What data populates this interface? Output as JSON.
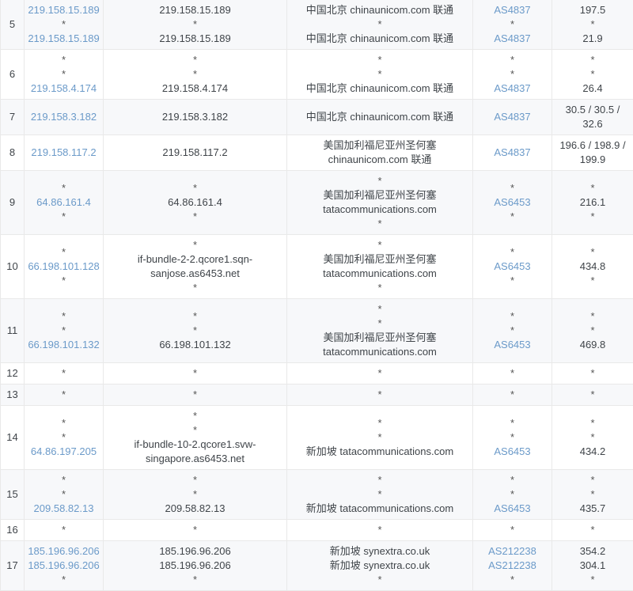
{
  "colors": {
    "link": "#6b9ac9",
    "text": "#3f4449",
    "border": "#e9e9e9",
    "stripe_bg": "#f7f8fa",
    "row_bg": "#ffffff",
    "asterisk": "#555555"
  },
  "table": {
    "rows": [
      {
        "hop": "5",
        "ip": [
          {
            "text": "219.158.15.189",
            "link": true
          },
          {
            "text": "*"
          },
          {
            "text": "219.158.15.189",
            "link": true
          }
        ],
        "host": [
          {
            "text": "219.158.15.189"
          },
          {
            "text": "*"
          },
          {
            "text": "219.158.15.189"
          }
        ],
        "location": [
          {
            "text": "中国北京 chinaunicom.com 联通"
          },
          {
            "text": "*"
          },
          {
            "text": "中国北京 chinaunicom.com 联通"
          }
        ],
        "asn": [
          {
            "text": "AS4837",
            "link": true
          },
          {
            "text": "*"
          },
          {
            "text": "AS4837",
            "link": true
          }
        ],
        "latency": [
          {
            "text": "197.5"
          },
          {
            "text": "*"
          },
          {
            "text": "21.9"
          }
        ]
      },
      {
        "hop": "6",
        "ip": [
          {
            "text": "*"
          },
          {
            "text": "*"
          },
          {
            "text": "219.158.4.174",
            "link": true
          }
        ],
        "host": [
          {
            "text": "*"
          },
          {
            "text": "*"
          },
          {
            "text": "219.158.4.174"
          }
        ],
        "location": [
          {
            "text": "*"
          },
          {
            "text": "*"
          },
          {
            "text": "中国北京 chinaunicom.com 联通"
          }
        ],
        "asn": [
          {
            "text": "*"
          },
          {
            "text": "*"
          },
          {
            "text": "AS4837",
            "link": true
          }
        ],
        "latency": [
          {
            "text": "*"
          },
          {
            "text": "*"
          },
          {
            "text": "26.4"
          }
        ]
      },
      {
        "hop": "7",
        "ip": [
          {
            "text": "219.158.3.182",
            "link": true
          }
        ],
        "host": [
          {
            "text": "219.158.3.182"
          }
        ],
        "location": [
          {
            "text": "中国北京 chinaunicom.com 联通"
          }
        ],
        "asn": [
          {
            "text": "AS4837",
            "link": true
          }
        ],
        "latency": [
          {
            "text": "30.5 / 30.5 / 32.6"
          }
        ]
      },
      {
        "hop": "8",
        "ip": [
          {
            "text": "219.158.117.2",
            "link": true
          }
        ],
        "host": [
          {
            "text": "219.158.117.2"
          }
        ],
        "location": [
          {
            "text": "美国加利福尼亚州圣何塞 chinaunicom.com 联通"
          }
        ],
        "asn": [
          {
            "text": "AS4837",
            "link": true
          }
        ],
        "latency": [
          {
            "text": "196.6 / 198.9 / 199.9"
          }
        ]
      },
      {
        "hop": "9",
        "ip": [
          {
            "text": "*"
          },
          {
            "text": "64.86.161.4",
            "link": true
          },
          {
            "text": "*"
          }
        ],
        "host": [
          {
            "text": "*"
          },
          {
            "text": "64.86.161.4"
          },
          {
            "text": "*"
          }
        ],
        "location": [
          {
            "text": "*"
          },
          {
            "text": "美国加利福尼亚州圣何塞 tatacommunications.com"
          },
          {
            "text": "*"
          }
        ],
        "asn": [
          {
            "text": "*"
          },
          {
            "text": "AS6453",
            "link": true
          },
          {
            "text": "*"
          }
        ],
        "latency": [
          {
            "text": "*"
          },
          {
            "text": "216.1"
          },
          {
            "text": "*"
          }
        ]
      },
      {
        "hop": "10",
        "ip": [
          {
            "text": "*"
          },
          {
            "text": "66.198.101.128",
            "link": true
          },
          {
            "text": "*"
          }
        ],
        "host": [
          {
            "text": "*"
          },
          {
            "text": "if-bundle-2-2.qcore1.sqn-sanjose.as6453.net"
          },
          {
            "text": "*"
          }
        ],
        "location": [
          {
            "text": "*"
          },
          {
            "text": "美国加利福尼亚州圣何塞 tatacommunications.com"
          },
          {
            "text": "*"
          }
        ],
        "asn": [
          {
            "text": "*"
          },
          {
            "text": "AS6453",
            "link": true
          },
          {
            "text": "*"
          }
        ],
        "latency": [
          {
            "text": "*"
          },
          {
            "text": "434.8"
          },
          {
            "text": "*"
          }
        ]
      },
      {
        "hop": "11",
        "ip": [
          {
            "text": "*"
          },
          {
            "text": "*"
          },
          {
            "text": "66.198.101.132",
            "link": true
          }
        ],
        "host": [
          {
            "text": "*"
          },
          {
            "text": "*"
          },
          {
            "text": "66.198.101.132"
          }
        ],
        "location": [
          {
            "text": "*"
          },
          {
            "text": "*"
          },
          {
            "text": "美国加利福尼亚州圣何塞 tatacommunications.com"
          }
        ],
        "asn": [
          {
            "text": "*"
          },
          {
            "text": "*"
          },
          {
            "text": "AS6453",
            "link": true
          }
        ],
        "latency": [
          {
            "text": "*"
          },
          {
            "text": "*"
          },
          {
            "text": "469.8"
          }
        ]
      },
      {
        "hop": "12",
        "ip": [
          {
            "text": "*"
          }
        ],
        "host": [
          {
            "text": "*"
          }
        ],
        "location": [
          {
            "text": "*"
          }
        ],
        "asn": [
          {
            "text": "*"
          }
        ],
        "latency": [
          {
            "text": "*"
          }
        ]
      },
      {
        "hop": "13",
        "ip": [
          {
            "text": "*"
          }
        ],
        "host": [
          {
            "text": "*"
          }
        ],
        "location": [
          {
            "text": "*"
          }
        ],
        "asn": [
          {
            "text": "*"
          }
        ],
        "latency": [
          {
            "text": "*"
          }
        ]
      },
      {
        "hop": "14",
        "ip": [
          {
            "text": "*"
          },
          {
            "text": "*"
          },
          {
            "text": "64.86.197.205",
            "link": true
          }
        ],
        "host": [
          {
            "text": "*"
          },
          {
            "text": "*"
          },
          {
            "text": "if-bundle-10-2.qcore1.svw-singapore.as6453.net"
          }
        ],
        "location": [
          {
            "text": "*"
          },
          {
            "text": "*"
          },
          {
            "text": "新加坡 tatacommunications.com"
          }
        ],
        "asn": [
          {
            "text": "*"
          },
          {
            "text": "*"
          },
          {
            "text": "AS6453",
            "link": true
          }
        ],
        "latency": [
          {
            "text": "*"
          },
          {
            "text": "*"
          },
          {
            "text": "434.2"
          }
        ]
      },
      {
        "hop": "15",
        "ip": [
          {
            "text": "*"
          },
          {
            "text": "*"
          },
          {
            "text": "209.58.82.13",
            "link": true
          }
        ],
        "host": [
          {
            "text": "*"
          },
          {
            "text": "*"
          },
          {
            "text": "209.58.82.13"
          }
        ],
        "location": [
          {
            "text": "*"
          },
          {
            "text": "*"
          },
          {
            "text": "新加坡 tatacommunications.com"
          }
        ],
        "asn": [
          {
            "text": "*"
          },
          {
            "text": "*"
          },
          {
            "text": "AS6453",
            "link": true
          }
        ],
        "latency": [
          {
            "text": "*"
          },
          {
            "text": "*"
          },
          {
            "text": "435.7"
          }
        ]
      },
      {
        "hop": "16",
        "ip": [
          {
            "text": "*"
          }
        ],
        "host": [
          {
            "text": "*"
          }
        ],
        "location": [
          {
            "text": "*"
          }
        ],
        "asn": [
          {
            "text": "*"
          }
        ],
        "latency": [
          {
            "text": "*"
          }
        ]
      },
      {
        "hop": "17",
        "ip": [
          {
            "text": "185.196.96.206",
            "link": true
          },
          {
            "text": "185.196.96.206",
            "link": true
          },
          {
            "text": "*"
          }
        ],
        "host": [
          {
            "text": "185.196.96.206"
          },
          {
            "text": "185.196.96.206"
          },
          {
            "text": "*"
          }
        ],
        "location": [
          {
            "text": "新加坡 synextra.co.uk"
          },
          {
            "text": "新加坡 synextra.co.uk"
          },
          {
            "text": "*"
          }
        ],
        "asn": [
          {
            "text": "AS212238",
            "link": true
          },
          {
            "text": "AS212238",
            "link": true
          },
          {
            "text": "*"
          }
        ],
        "latency": [
          {
            "text": "354.2"
          },
          {
            "text": "304.1"
          },
          {
            "text": "*"
          }
        ]
      }
    ]
  }
}
